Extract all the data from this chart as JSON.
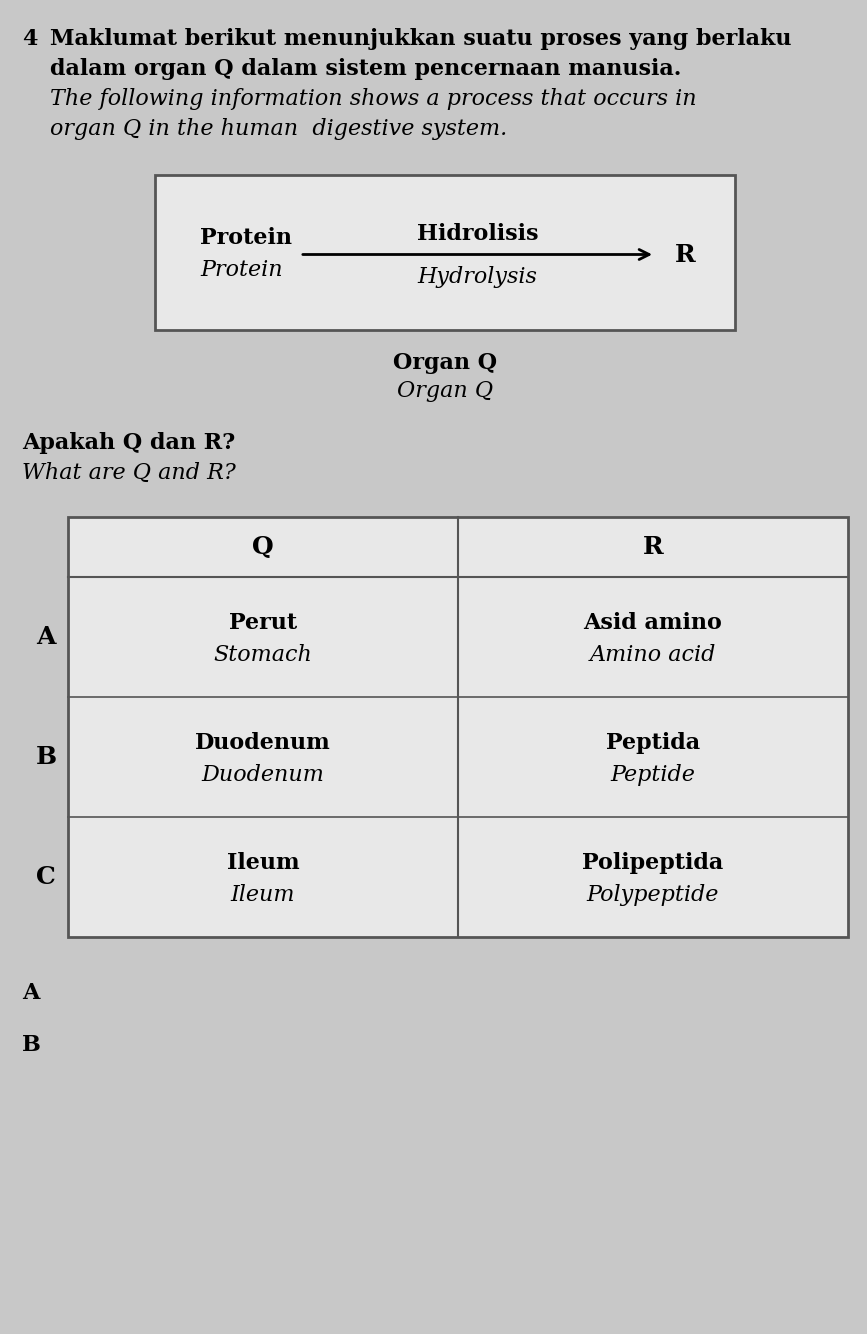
{
  "background_color": "#c8c8c8",
  "question_number": "4",
  "title_line1": "Maklumat berikut menunjukkan suatu proses yang berlaku",
  "title_line2": "dalam organ Q dalam sistem pencernaan manusia.",
  "title_line3": "The following information shows a process that occurs in",
  "title_line4": "organ Q in the human  digestive system.",
  "box_label_left_line1": "Protein",
  "box_label_left_line2": "Protein",
  "box_arrow_top": "Hidrolisis",
  "box_arrow_bottom": "Hydrolysis",
  "box_arrow_end": "R",
  "box_bottom_line1": "Organ Q",
  "box_bottom_line2": "Organ Q",
  "question_line1": "Apakah Q dan R?",
  "question_line2": "What are Q and R?",
  "table_header_q": "Q",
  "table_header_r": "R",
  "table_rows": [
    {
      "label": "A",
      "q_line1": "Perut",
      "q_line2": "Stomach",
      "r_line1": "Asid amino",
      "r_line2": "Amino acid"
    },
    {
      "label": "B",
      "q_line1": "Duodenum",
      "q_line2": "Duodenum",
      "r_line1": "Peptida",
      "r_line2": "Peptide"
    },
    {
      "label": "C",
      "q_line1": "Ileum",
      "q_line2": "Ileum",
      "r_line1": "Polipeptida",
      "r_line2": "Polypeptide"
    }
  ],
  "footer_labels": [
    "A",
    "B"
  ],
  "title_fontsize": 16,
  "body_fontsize": 16,
  "table_fontsize": 16
}
